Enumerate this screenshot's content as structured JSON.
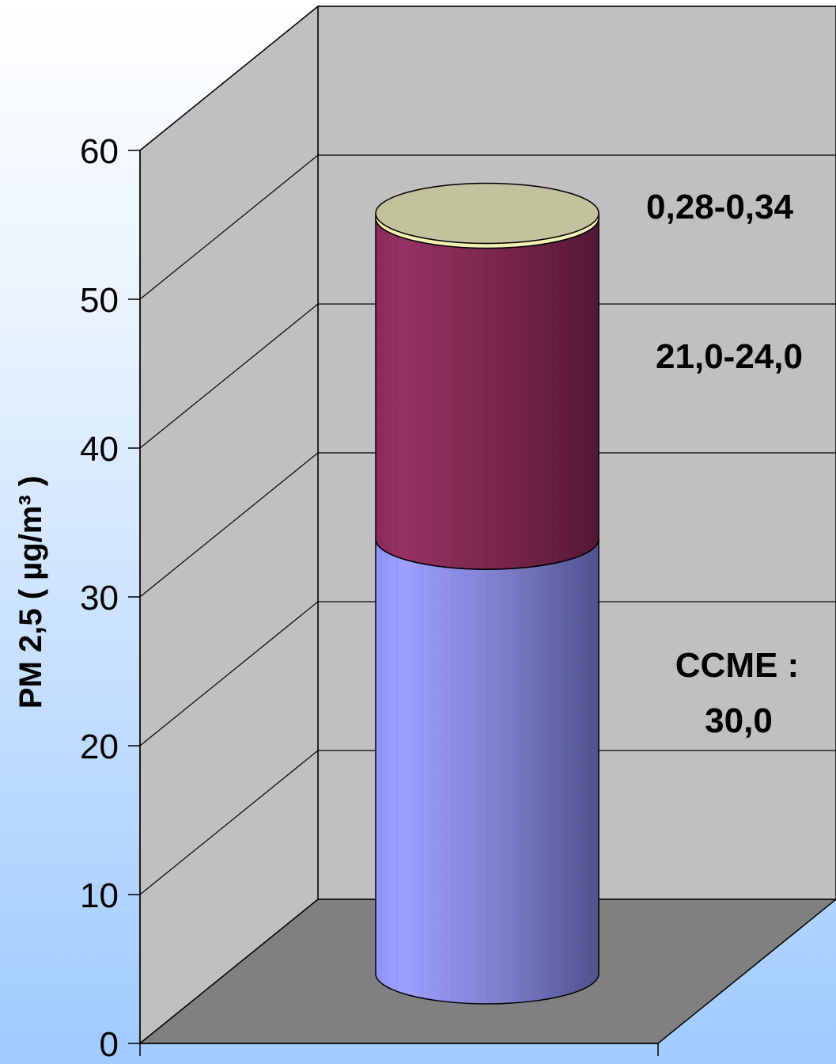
{
  "chart_data": {
    "type": "bar",
    "style": "3d-stacked-cylinder",
    "ylabel": "PM 2,5 ( µg/m³ )",
    "ylim": [
      0,
      60
    ],
    "yticks": [
      0,
      10,
      20,
      30,
      40,
      50,
      60
    ],
    "grid": true,
    "categories": [
      ""
    ],
    "series": [
      {
        "values": [
          30.0
        ],
        "color": "#8f94f5"
      },
      {
        "values": [
          22.5
        ],
        "color": "#8e2c5c"
      },
      {
        "values": [
          0.3
        ],
        "color": "#f2efb4"
      }
    ],
    "annotations": [
      "0,28-0,34",
      "21,0-24,0",
      "CCME :",
      "30,0"
    ]
  }
}
